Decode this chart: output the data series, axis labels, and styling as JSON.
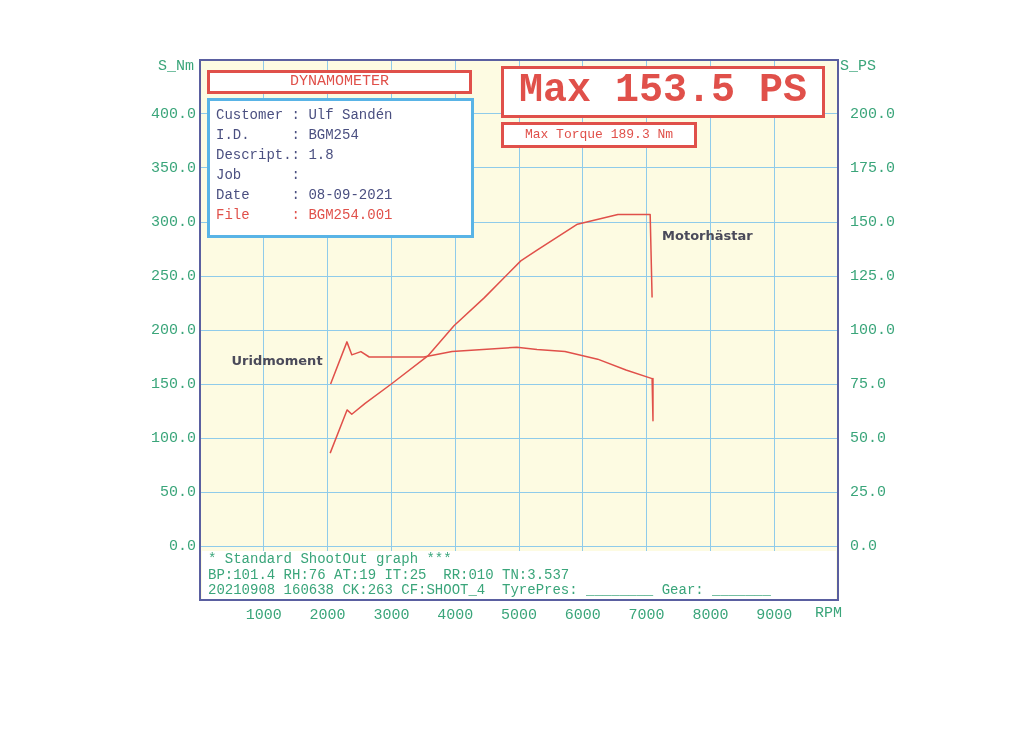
{
  "chart_data": {
    "type": "line",
    "xlabel": "RPM",
    "ylabel": "S_Nm",
    "y2label": "S_PS",
    "annotations": [
      "DYNAMOMETER",
      "Customer : Ulf Sandén",
      "I.D.     : BGM254",
      "Descript.: 1.8",
      "Job      :",
      "Date     : 08-09-2021",
      "File     : BGM254.001",
      "Max 153.5 PS",
      "Max Torque 189.3 Nm",
      "* Standard ShootOut graph ***",
      "BP:101.4 RH:76 AT:19 IT:25  RR:010 TN:3.537",
      "20210908 160638 CK:263 CF:SHOOT_4  TyrePres: ________ Gear: _______"
    ],
    "series": [
      {
        "name": "Uridmoment",
        "color": "#e0504a",
        "x": [
          2047,
          2303,
          2379,
          2522,
          2652,
          3508,
          3950,
          4966,
          5283,
          5720,
          6233,
          6677,
          7086,
          7100
        ],
        "values": [
          150,
          189,
          177,
          180,
          175,
          175,
          180,
          184,
          182,
          180,
          173,
          163,
          155,
          116
        ]
      },
      {
        "name": "Motorhästar",
        "color": "#e0504a",
        "axis": "y2",
        "x": [
          2040,
          2305,
          2379,
          2588,
          2999,
          3571,
          3981,
          4458,
          5028,
          5283,
          5916,
          6550,
          7056,
          7086
        ],
        "values": [
          43,
          63,
          61,
          66,
          75,
          88,
          102,
          115,
          132,
          137,
          149,
          153.5,
          153.5,
          115
        ]
      }
    ],
    "xlim": [
      0,
      10000
    ],
    "xticks": [
      1000,
      2000,
      3000,
      4000,
      5000,
      6000,
      7000,
      8000,
      9000
    ],
    "ylim": [
      -50,
      450
    ],
    "yticks": [
      {
        "value": 0,
        "label": "0.0"
      },
      {
        "value": 50,
        "label": "50.0"
      },
      {
        "value": 100,
        "label": "100.0"
      },
      {
        "value": 150,
        "label": "150.0"
      },
      {
        "value": 200,
        "label": "200.0"
      },
      {
        "value": 250,
        "label": "250.0"
      },
      {
        "value": 300,
        "label": "300.0"
      },
      {
        "value": 350,
        "label": "350.0"
      },
      {
        "value": 400,
        "label": "400.0"
      }
    ],
    "y2lim": [
      -25,
      225
    ],
    "y2ticks": [
      {
        "value": 0,
        "label": "0.0"
      },
      {
        "value": 25,
        "label": "25.0"
      },
      {
        "value": 50,
        "label": "50.0"
      },
      {
        "value": 75,
        "label": "75.0"
      },
      {
        "value": 100,
        "label": "100.0"
      },
      {
        "value": 125,
        "label": "125.0"
      },
      {
        "value": 150,
        "label": "150.0"
      },
      {
        "value": 175,
        "label": "175.0"
      },
      {
        "value": 200,
        "label": "200.0"
      }
    ],
    "grid": true,
    "legend": false,
    "marker": "none",
    "line_style": "solid"
  }
}
